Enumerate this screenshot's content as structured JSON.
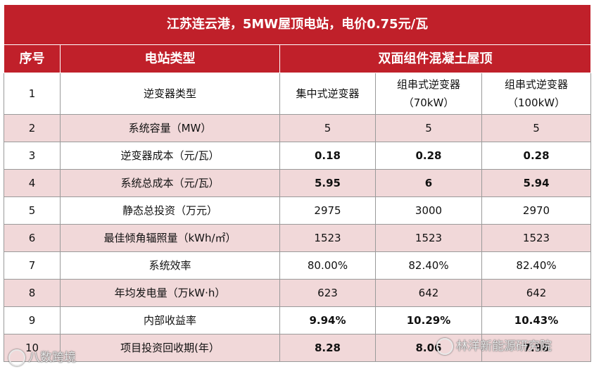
{
  "title": "江苏连云港，5MW屋顶电站，电价0.75元/瓦",
  "header": {
    "col_no": "序号",
    "col_type": "电站类型",
    "col_group": "双面组件混凝土屋顶"
  },
  "rows": [
    {
      "no": "1",
      "label": "逆变器类型",
      "v1": "集中式逆变器",
      "v2": "组串式逆变器（70kW）",
      "v3": "组串式逆变器（100kW）"
    },
    {
      "no": "2",
      "label": "系统容量（MW）",
      "v1": "5",
      "v2": "5",
      "v3": "5"
    },
    {
      "no": "3",
      "label": "逆变器成本（元/瓦）",
      "v1": "0.18",
      "v2": "0.28",
      "v3": "0.28"
    },
    {
      "no": "4",
      "label": "系统总成本（元/瓦）",
      "v1": "5.95",
      "v2": "6",
      "v3": "5.94"
    },
    {
      "no": "5",
      "label": "静态总投资（万元）",
      "v1": "2975",
      "v2": "3000",
      "v3": "2970"
    },
    {
      "no": "6",
      "label": "最佳倾角辐照量（kWh/㎡）",
      "v1": "1523",
      "v2": "1523",
      "v3": "1523"
    },
    {
      "no": "7",
      "label": "系统效率",
      "v1": "80.00%",
      "v2": "82.40%",
      "v3": "82.40%"
    },
    {
      "no": "8",
      "label": "年均发电量（万kW·h）",
      "v1": "623",
      "v2": "642",
      "v3": "642"
    },
    {
      "no": "9",
      "label": "内部收益率",
      "v1": "9.94%",
      "v2": "10.29%",
      "v3": "10.43%"
    },
    {
      "no": "10",
      "label": "项目投资回收期(年）",
      "v1": "8.28",
      "v2": "8.06",
      "v3": "7.98"
    }
  ],
  "watermarks": {
    "left": "八数跨境",
    "right": "林洋新能源研究院"
  }
}
